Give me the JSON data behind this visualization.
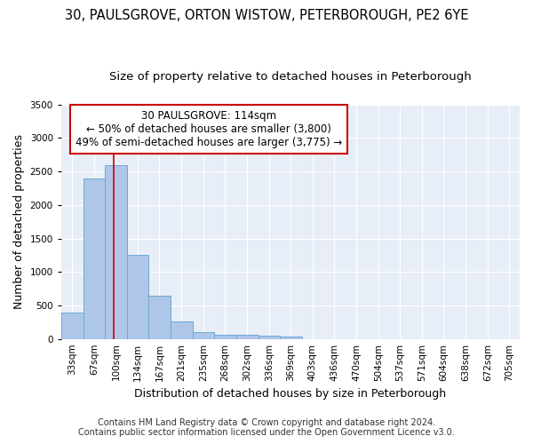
{
  "title1": "30, PAULSGROVE, ORTON WISTOW, PETERBOROUGH, PE2 6YE",
  "title2": "Size of property relative to detached houses in Peterborough",
  "xlabel": "Distribution of detached houses by size in Peterborough",
  "ylabel": "Number of detached properties",
  "bin_labels": [
    "33sqm",
    "67sqm",
    "100sqm",
    "134sqm",
    "167sqm",
    "201sqm",
    "235sqm",
    "268sqm",
    "302sqm",
    "336sqm",
    "369sqm",
    "403sqm",
    "436sqm",
    "470sqm",
    "504sqm",
    "537sqm",
    "571sqm",
    "604sqm",
    "638sqm",
    "672sqm",
    "705sqm"
  ],
  "bin_edges": [
    33,
    67,
    100,
    134,
    167,
    201,
    235,
    268,
    302,
    336,
    369,
    403,
    436,
    470,
    504,
    537,
    571,
    604,
    638,
    672,
    705,
    738
  ],
  "bar_heights": [
    400,
    2400,
    2600,
    1250,
    650,
    260,
    100,
    60,
    60,
    50,
    30,
    0,
    0,
    0,
    0,
    0,
    0,
    0,
    0,
    0,
    0
  ],
  "bar_color": "#aec6e8",
  "bar_edge_color": "#6aaad4",
  "bg_color": "#e8eef8",
  "grid_color": "#ffffff",
  "red_line_x": 114,
  "annotation_line1": "30 PAULSGROVE: 114sqm",
  "annotation_line2": "← 50% of detached houses are smaller (3,800)",
  "annotation_line3": "49% of semi-detached houses are larger (3,775) →",
  "annotation_box_color": "#ffffff",
  "annotation_box_edge": "#cc0000",
  "ylim": [
    0,
    3500
  ],
  "yticks": [
    0,
    500,
    1000,
    1500,
    2000,
    2500,
    3000,
    3500
  ],
  "footer1": "Contains HM Land Registry data © Crown copyright and database right 2024.",
  "footer2": "Contains public sector information licensed under the Open Government Licence v3.0.",
  "title1_fontsize": 10.5,
  "title2_fontsize": 9.5,
  "axis_label_fontsize": 9,
  "tick_fontsize": 7.5,
  "annotation_fontsize": 8.5,
  "footer_fontsize": 7
}
